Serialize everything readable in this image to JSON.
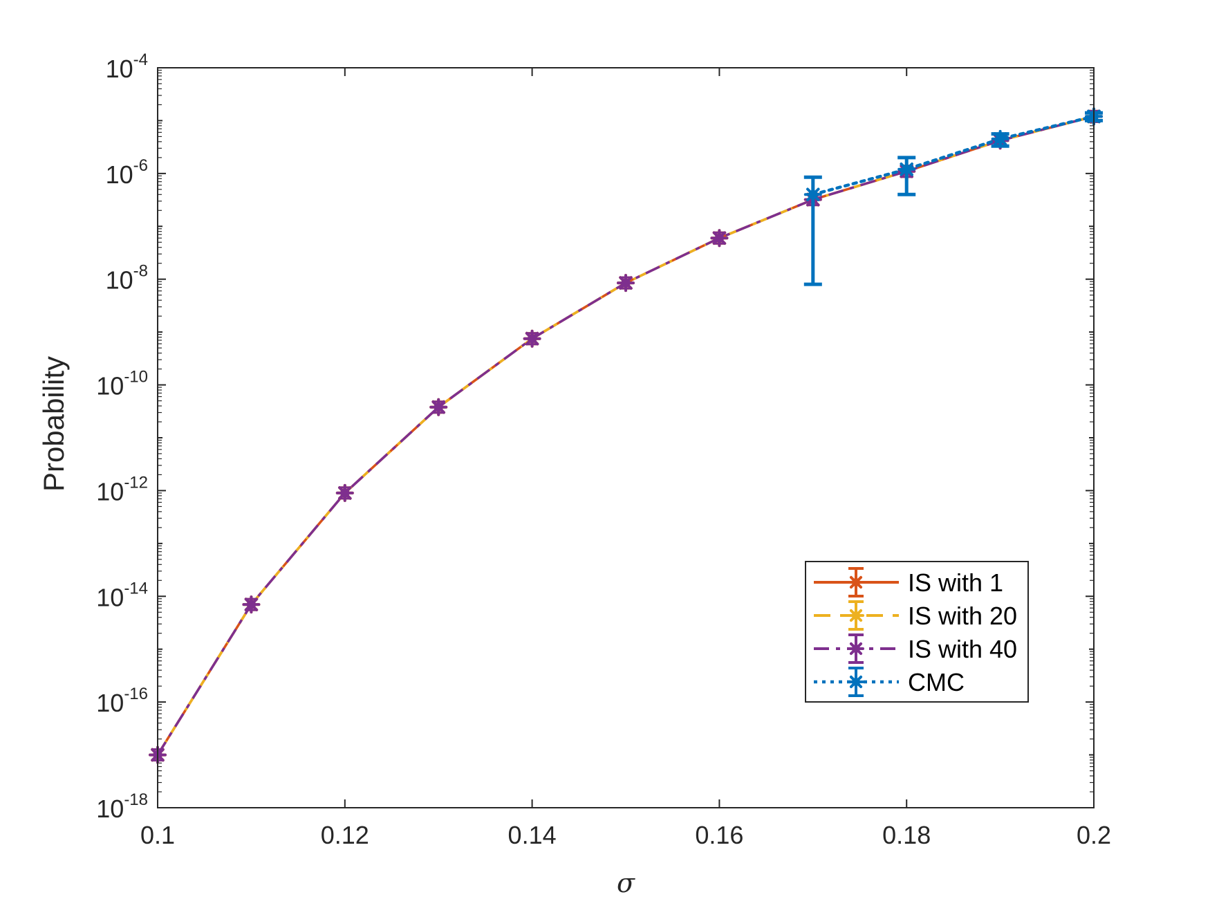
{
  "chart_data": {
    "type": "line",
    "title": "",
    "xlabel": "σ",
    "ylabel": "Probability",
    "xlim": [
      0.1,
      0.2
    ],
    "ylim": [
      1e-18,
      0.0001
    ],
    "yscale": "log",
    "x_ticks": [
      "0.1",
      "0.12",
      "0.14",
      "0.16",
      "0.18",
      "0.2"
    ],
    "x_tick_values": [
      0.1,
      0.12,
      0.14,
      0.16,
      0.18,
      0.2
    ],
    "y_ticks": [
      {
        "base": "10",
        "exp": "-18",
        "value": 1e-18
      },
      {
        "base": "10",
        "exp": "-16",
        "value": 1e-16
      },
      {
        "base": "10",
        "exp": "-14",
        "value": 1e-14
      },
      {
        "base": "10",
        "exp": "-12",
        "value": 1e-12
      },
      {
        "base": "10",
        "exp": "-10",
        "value": 1e-10
      },
      {
        "base": "10",
        "exp": "-8",
        "value": 1e-08
      },
      {
        "base": "10",
        "exp": "-6",
        "value": 1e-06
      },
      {
        "base": "10",
        "exp": "-4",
        "value": 0.0001
      }
    ],
    "grid": false,
    "legend_position": "bottom-right",
    "x": [
      0.1,
      0.11,
      0.12,
      0.13,
      0.14,
      0.15,
      0.16,
      0.17,
      0.18,
      0.19,
      0.2
    ],
    "series": [
      {
        "name": "IS with 1",
        "color": "#D95319",
        "dash": "solid",
        "values": [
          1e-17,
          7e-15,
          9e-13,
          3.8e-11,
          7.5e-10,
          8.5e-09,
          6e-08,
          3.2e-07,
          1.1e-06,
          4.2e-06,
          1.2e-05
        ]
      },
      {
        "name": "IS with 20",
        "color": "#EDB120",
        "dash": "dashed",
        "values": [
          1e-17,
          7e-15,
          9e-13,
          3.8e-11,
          7.5e-10,
          8.5e-09,
          6e-08,
          3.2e-07,
          1.1e-06,
          4.2e-06,
          1.2e-05
        ]
      },
      {
        "name": "IS with 40",
        "color": "#7E2F8E",
        "dash": "dash-dot",
        "values": [
          1e-17,
          7e-15,
          9e-13,
          3.8e-11,
          7.5e-10,
          8.5e-09,
          6e-08,
          3.2e-07,
          1.1e-06,
          4.2e-06,
          1.2e-05
        ]
      },
      {
        "name": "CMC",
        "color": "#0072BD",
        "dash": "dotted",
        "x": [
          0.17,
          0.18,
          0.19,
          0.2
        ],
        "values": [
          4e-07,
          1.2e-06,
          4.5e-06,
          1.2e-05
        ],
        "error_lower": [
          8e-09,
          4e-07,
          3.3e-06,
          1e-05
        ],
        "error_upper": [
          8.5e-07,
          2e-06,
          5.6e-06,
          1.4e-05
        ]
      }
    ]
  }
}
